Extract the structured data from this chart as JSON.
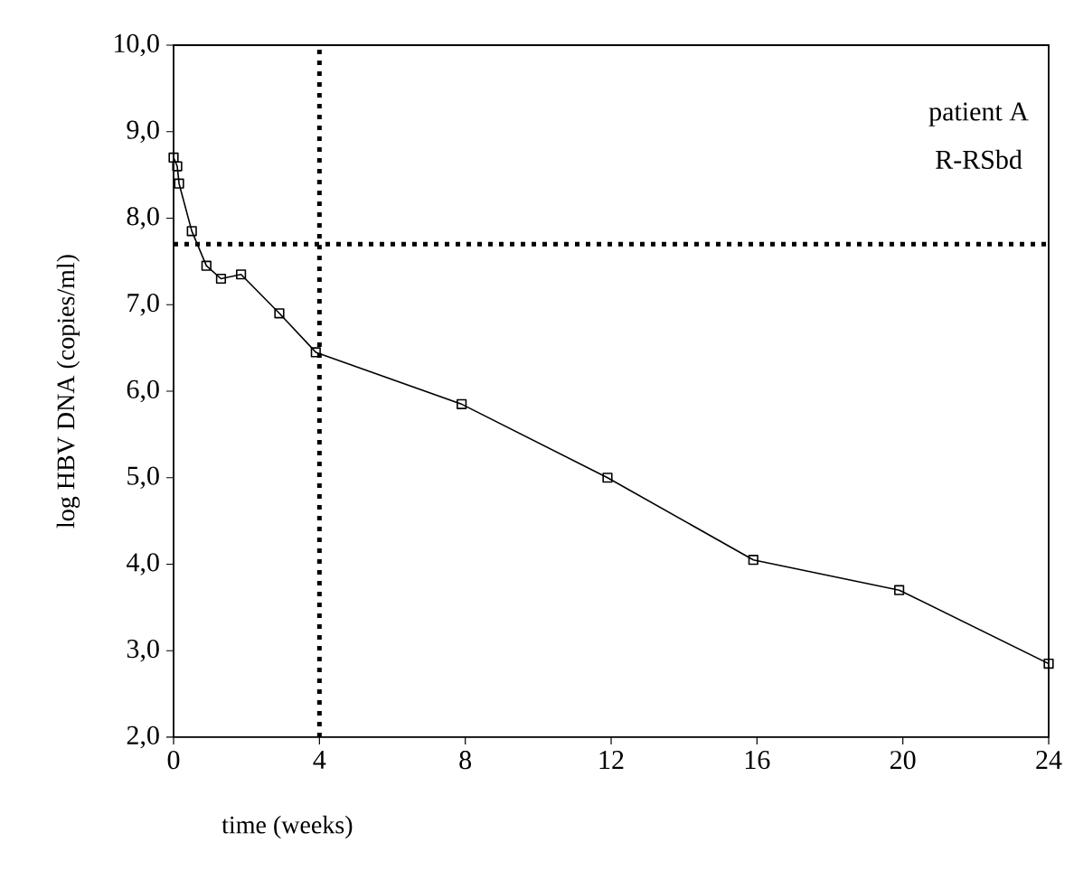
{
  "chart_data": {
    "type": "line",
    "xlabel": "time (weeks)",
    "ylabel": "log HBV DNA (copies/ml)",
    "annotations": [
      "patient A",
      "R-RSbd"
    ],
    "x": [
      0,
      0.1,
      0.15,
      0.5,
      0.9,
      1.3,
      1.85,
      2.9,
      3.9,
      7.9,
      11.9,
      15.9,
      19.9,
      24
    ],
    "series": [
      {
        "color": "#000000",
        "values": [
          8.7,
          8.6,
          8.4,
          7.85,
          7.45,
          7.3,
          7.35,
          6.9,
          6.45,
          5.85,
          5.0,
          4.05,
          3.7,
          2.85
        ]
      }
    ],
    "marker": "square",
    "line_style": "solid",
    "xlim": [
      0,
      24
    ],
    "xticks": [
      0,
      4,
      8,
      12,
      16,
      20,
      24
    ],
    "ylim": [
      2,
      10
    ],
    "yticks": [
      {
        "value": 2,
        "label": "2,0"
      },
      {
        "value": 3,
        "label": "3,0"
      },
      {
        "value": 4,
        "label": "4,0"
      },
      {
        "value": 5,
        "label": "5,0"
      },
      {
        "value": 6,
        "label": "6,0"
      },
      {
        "value": 7,
        "label": "7,0"
      },
      {
        "value": 8,
        "label": "8,0"
      },
      {
        "value": 9,
        "label": "9,0"
      },
      {
        "value": 10,
        "label": "10,0"
      }
    ],
    "ref_lines": [
      {
        "axis": "y",
        "value": 7.7,
        "line_style": "dotted",
        "color": "#000000"
      },
      {
        "axis": "x",
        "value": 4,
        "line_style": "dotted",
        "color": "#000000"
      }
    ]
  }
}
